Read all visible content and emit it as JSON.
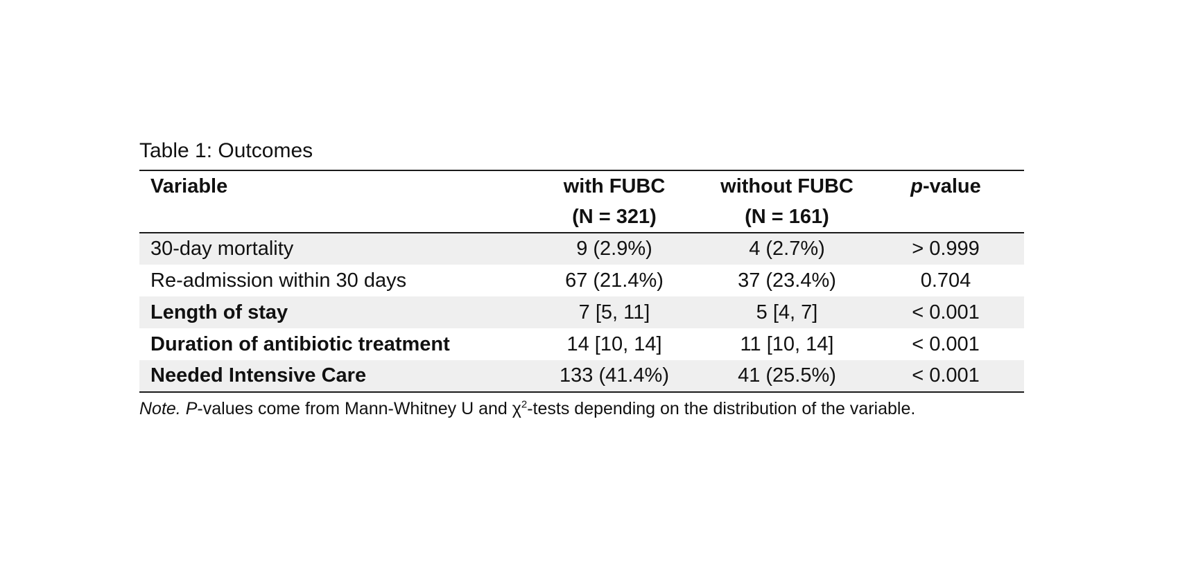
{
  "document": {
    "title": "Table 1: Outcomes",
    "table": {
      "headers": {
        "variable": "Variable",
        "group1_line1": "with FUBC",
        "group1_line2": "(N = 321)",
        "group2_line1": "without FUBC",
        "group2_line2": "(N = 161)",
        "pvalue_italic": "p",
        "pvalue_rest": "-value"
      },
      "rows": [
        {
          "variable": "30-day mortality",
          "bold": false,
          "shaded": true,
          "with_fubc": "9 (2.9%)",
          "without_fubc": "4 (2.7%)",
          "p_value": "> 0.999"
        },
        {
          "variable": "Re-admission within 30 days",
          "bold": false,
          "shaded": false,
          "with_fubc": "67 (21.4%)",
          "without_fubc": "37 (23.4%)",
          "p_value": "0.704"
        },
        {
          "variable": "Length of stay",
          "bold": true,
          "shaded": true,
          "with_fubc": "7 [5, 11]",
          "without_fubc": "5 [4, 7]",
          "p_value": "< 0.001"
        },
        {
          "variable": "Duration of antibiotic treatment",
          "bold": true,
          "shaded": false,
          "with_fubc": "14 [10, 14]",
          "without_fubc": "11 [10, 14]",
          "p_value": "< 0.001"
        },
        {
          "variable": "Needed Intensive Care",
          "bold": true,
          "shaded": true,
          "with_fubc": "133 (41.4%)",
          "without_fubc": "41 (25.5%)",
          "p_value": "< 0.001"
        }
      ]
    },
    "note": {
      "label": "Note.",
      "p_italic": "P",
      "body": "-values come from Mann-Whitney U and ",
      "chi": "χ",
      "chi_sup": "2",
      "tail": "-tests depending on the distribution of the variable."
    }
  },
  "colors": {
    "background": "#ffffff",
    "text": "#111111",
    "rule": "#1a1a1a",
    "row_stripe": "#efefef"
  }
}
